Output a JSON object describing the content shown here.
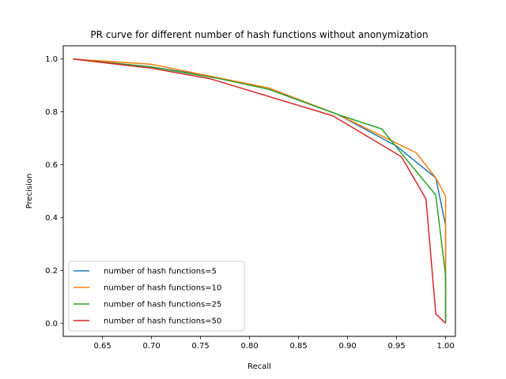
{
  "chart_data": {
    "type": "line",
    "title": "PR curve for different number of hash functions without anonymization",
    "xlabel": "Recall",
    "ylabel": "Precision",
    "xlim": [
      0.61,
      1.01
    ],
    "ylim": [
      -0.05,
      1.05
    ],
    "xticks": [
      0.65,
      0.7,
      0.75,
      0.8,
      0.85,
      0.9,
      0.95,
      1.0
    ],
    "xtick_labels": [
      "0.65",
      "0.70",
      "0.75",
      "0.80",
      "0.85",
      "0.90",
      "0.95",
      "1.00"
    ],
    "yticks": [
      0.0,
      0.2,
      0.4,
      0.6,
      0.8,
      1.0
    ],
    "ytick_labels": [
      "0.0",
      "0.2",
      "0.4",
      "0.6",
      "0.8",
      "1.0"
    ],
    "grid": false,
    "legend_position": "lower-left",
    "series": [
      {
        "name": "number of hash functions=5",
        "color": "#1f77b4",
        "x": [
          0.62,
          0.7,
          0.76,
          0.82,
          0.89,
          0.95,
          0.99,
          1.0,
          1.0
        ],
        "y": [
          1.0,
          0.97,
          0.935,
          0.885,
          0.79,
          0.67,
          0.55,
          0.37,
          0.0
        ]
      },
      {
        "name": "number of hash functions=10",
        "color": "#ff7f0e",
        "x": [
          0.62,
          0.7,
          0.76,
          0.82,
          0.89,
          0.97,
          0.99,
          1.0,
          1.0
        ],
        "y": [
          1.0,
          0.98,
          0.935,
          0.89,
          0.79,
          0.645,
          0.55,
          0.48,
          0.0
        ]
      },
      {
        "name": "number of hash functions=25",
        "color": "#2ca02c",
        "x": [
          0.62,
          0.7,
          0.77,
          0.82,
          0.89,
          0.935,
          0.96,
          0.99,
          1.0,
          1.0
        ],
        "y": [
          1.0,
          0.97,
          0.925,
          0.885,
          0.79,
          0.735,
          0.62,
          0.485,
          0.18,
          0.0
        ]
      },
      {
        "name": "number of hash functions=50",
        "color": "#d62728",
        "x": [
          0.62,
          0.7,
          0.76,
          0.885,
          0.955,
          0.98,
          0.99,
          1.0
        ],
        "y": [
          1.0,
          0.965,
          0.925,
          0.785,
          0.63,
          0.47,
          0.035,
          0.0
        ]
      }
    ]
  }
}
